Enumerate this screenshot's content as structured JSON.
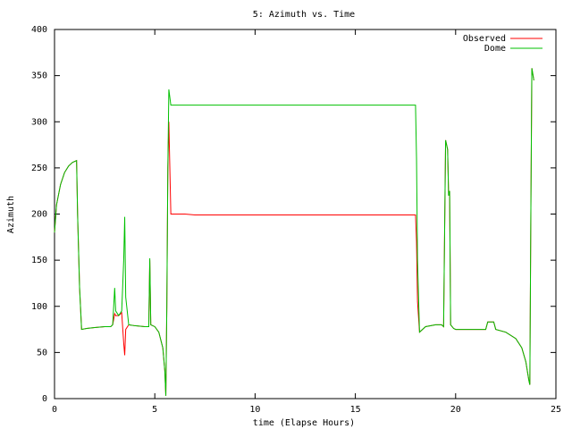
{
  "chart_data": {
    "type": "line",
    "title": "5: Azimuth vs. Time",
    "x_label": "time (Elapse Hours)",
    "y_label": "Azimuth",
    "x": [
      0,
      0.1,
      0.3,
      0.5,
      0.7,
      0.9,
      1.0,
      1.1,
      1.15,
      1.25,
      1.35,
      1.6,
      2.0,
      2.5,
      2.8,
      2.9,
      3.0,
      3.05,
      3.2,
      3.35,
      3.45,
      3.5,
      3.55,
      3.7,
      4.0,
      4.5,
      4.7,
      4.75,
      4.8,
      5.0,
      5.2,
      5.4,
      5.5,
      5.55,
      5.6,
      5.65,
      5.7,
      5.8,
      6.5,
      7.0,
      10,
      15,
      18.0,
      18.05,
      18.1,
      18.2,
      18.5,
      19.0,
      19.3,
      19.4,
      19.5,
      19.6,
      19.65,
      19.7,
      19.75,
      19.9,
      20,
      21.0,
      21.5,
      21.6,
      21.9,
      22.0,
      22.5,
      23.0,
      23.3,
      23.5,
      23.65,
      23.7,
      23.75,
      23.8,
      23.9
    ],
    "series": [
      {
        "name": "Observed",
        "color": "#ff0000",
        "values": [
          180,
          210,
          232,
          245,
          252,
          256,
          257,
          258,
          200,
          120,
          75,
          76,
          77,
          78,
          78,
          80,
          92,
          90,
          90,
          93,
          60,
          47,
          75,
          80,
          79,
          78,
          78,
          150,
          80,
          78,
          72,
          55,
          30,
          3,
          100,
          250,
          300,
          200,
          200,
          199,
          199,
          199,
          199,
          170,
          105,
          72,
          78,
          80,
          80,
          78,
          280,
          270,
          220,
          225,
          80,
          76,
          75,
          75,
          75,
          83,
          83,
          75,
          72,
          65,
          55,
          40,
          20,
          15,
          200,
          358,
          345
        ]
      },
      {
        "name": "Dome",
        "color": "#00c000",
        "values": [
          180,
          210,
          232,
          245,
          252,
          256,
          257,
          258,
          200,
          120,
          75,
          76,
          77,
          78,
          78,
          80,
          120,
          95,
          90,
          95,
          150,
          197,
          110,
          80,
          79,
          78,
          78,
          152,
          80,
          78,
          72,
          55,
          30,
          3,
          100,
          250,
          335,
          318,
          318,
          318,
          318,
          318,
          318,
          260,
          150,
          72,
          78,
          80,
          80,
          78,
          280,
          270,
          220,
          225,
          80,
          76,
          75,
          75,
          75,
          83,
          83,
          75,
          72,
          65,
          55,
          40,
          20,
          15,
          200,
          358,
          345
        ]
      }
    ],
    "xlim": [
      0,
      25
    ],
    "xticks": [
      0,
      5,
      10,
      15,
      20,
      25
    ],
    "ylim": [
      0,
      400
    ],
    "yticks": [
      0,
      50,
      100,
      150,
      200,
      250,
      300,
      350,
      400
    ],
    "legend": "top-right"
  }
}
